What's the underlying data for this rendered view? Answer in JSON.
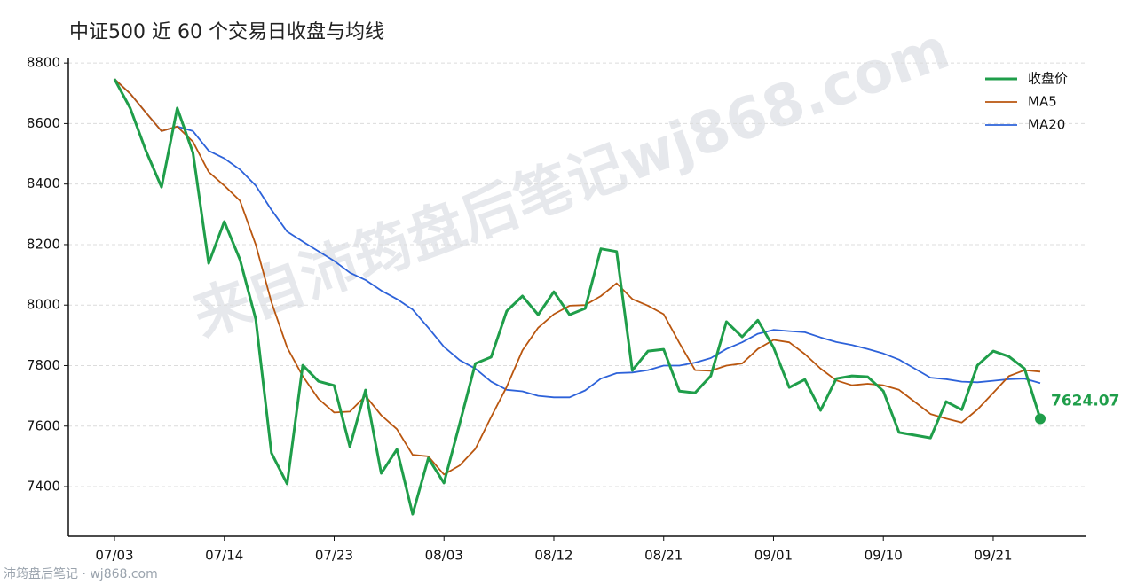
{
  "chart_data": {
    "type": "line",
    "title": "中证500 近 60 个交易日收盘与均线",
    "categories": [
      "07/03",
      null,
      null,
      null,
      null,
      null,
      null,
      "07/14",
      null,
      null,
      null,
      null,
      null,
      null,
      "07/23",
      null,
      null,
      null,
      null,
      null,
      null,
      "08/03",
      null,
      null,
      null,
      null,
      null,
      null,
      "08/12",
      null,
      null,
      null,
      null,
      null,
      null,
      "08/21",
      null,
      null,
      null,
      null,
      null,
      null,
      "09/01",
      null,
      null,
      null,
      null,
      null,
      null,
      "09/10",
      null,
      null,
      null,
      null,
      null,
      null,
      "09/21",
      null,
      null,
      null
    ],
    "series": [
      {
        "name": "收盘价",
        "color": "#1f9e4a",
        "width": 3,
        "values": [
          8747,
          8651,
          8510,
          8390,
          8651,
          8504,
          8138,
          8276,
          8150,
          7954,
          7511,
          7409,
          7801,
          7748,
          7734,
          7532,
          7719,
          7444,
          7523,
          7309,
          7494,
          7412,
          7608,
          7807,
          7828,
          7980,
          8030,
          7968,
          8044,
          7968,
          7989,
          8186,
          8177,
          7784,
          7848,
          7854,
          7716,
          7710,
          7766,
          7945,
          7895,
          7950,
          7860,
          7728,
          7754,
          7652,
          7757,
          7766,
          7763,
          7716,
          7579,
          7570,
          7561,
          7681,
          7654,
          7801,
          7848,
          7830,
          7790,
          7624.07
        ]
      },
      {
        "name": "MA5",
        "color": "#b9560f",
        "width": 1.8,
        "values": [
          8747,
          8699,
          8636,
          8575,
          8590,
          8540,
          8440,
          8395,
          8345,
          8200,
          8010,
          7860,
          7765,
          7690,
          7645,
          7648,
          7700,
          7636,
          7590,
          7505,
          7500,
          7440,
          7470,
          7525,
          7630,
          7730,
          7850,
          7925,
          7970,
          7998,
          8000,
          8030,
          8072,
          8020,
          7998,
          7970,
          7875,
          7785,
          7783,
          7800,
          7807,
          7855,
          7885,
          7877,
          7838,
          7790,
          7751,
          7735,
          7740,
          7735,
          7720,
          7680,
          7640,
          7625,
          7612,
          7655,
          7710,
          7765,
          7785,
          7780
        ]
      },
      {
        "name": "MA20",
        "color": "#2d62d9",
        "width": 1.8,
        "values": [
          8747,
          8699,
          8636,
          8575,
          8590,
          8575,
          8510,
          8485,
          8448,
          8395,
          8315,
          8243,
          8210,
          8178,
          8146,
          8107,
          8083,
          8048,
          8020,
          7985,
          7925,
          7862,
          7818,
          7790,
          7747,
          7720,
          7715,
          7700,
          7695,
          7695,
          7718,
          7757,
          7775,
          7777,
          7785,
          7800,
          7800,
          7810,
          7825,
          7855,
          7877,
          7905,
          7918,
          7914,
          7910,
          7893,
          7878,
          7868,
          7855,
          7840,
          7820,
          7790,
          7760,
          7755,
          7747,
          7745,
          7750,
          7755,
          7757,
          7742
        ]
      }
    ],
    "ylim": [
      7236,
      8818
    ],
    "yticks": [
      7400,
      7600,
      7800,
      8000,
      8200,
      8400,
      8600,
      8800
    ],
    "grid": true,
    "legend": "upper-right"
  },
  "watermark": "来自沛筠盘后笔记wj868.com",
  "footer": "沛筠盘后笔记 · wj868.com"
}
